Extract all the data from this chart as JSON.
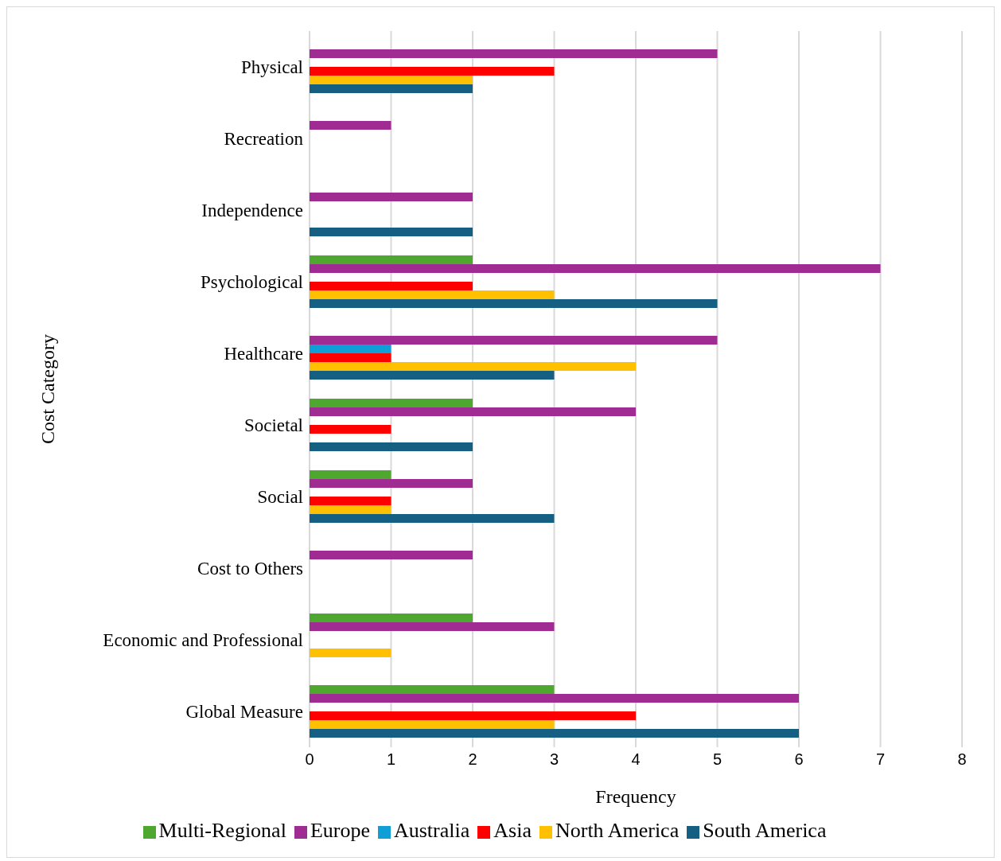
{
  "chart_data": {
    "type": "bar",
    "orientation": "horizontal",
    "xlabel": "Frequency",
    "ylabel": "Cost Category",
    "categories": [
      "Physical",
      "Recreation",
      "Independence",
      "Psychological",
      "Healthcare",
      "Societal",
      "Social",
      "Cost to Others",
      "Economic and Professional",
      "Global Measure"
    ],
    "series": [
      {
        "name": "Multi-Regional",
        "color": "#4ea72e",
        "values": [
          null,
          null,
          null,
          2,
          null,
          2,
          1,
          null,
          2,
          3
        ]
      },
      {
        "name": "Europe",
        "color": "#a02b93",
        "values": [
          5,
          1,
          2,
          7,
          5,
          4,
          2,
          2,
          3,
          6
        ]
      },
      {
        "name": "Australia",
        "color": "#0f9ed5",
        "values": [
          null,
          null,
          null,
          null,
          1,
          null,
          null,
          null,
          null,
          null
        ]
      },
      {
        "name": "Asia",
        "color": "#ff0000",
        "values": [
          3,
          null,
          null,
          2,
          1,
          1,
          1,
          null,
          null,
          4
        ]
      },
      {
        "name": "North America",
        "color": "#ffc000",
        "values": [
          2,
          null,
          null,
          3,
          4,
          null,
          1,
          null,
          1,
          3
        ]
      },
      {
        "name": "South America",
        "color": "#156082",
        "values": [
          2,
          null,
          2,
          5,
          3,
          2,
          3,
          null,
          null,
          6
        ]
      }
    ],
    "xlim": [
      0,
      8
    ],
    "xticks": [
      0,
      1,
      2,
      3,
      4,
      5,
      6,
      7,
      8
    ],
    "grid": "x",
    "legend": "bottom"
  }
}
